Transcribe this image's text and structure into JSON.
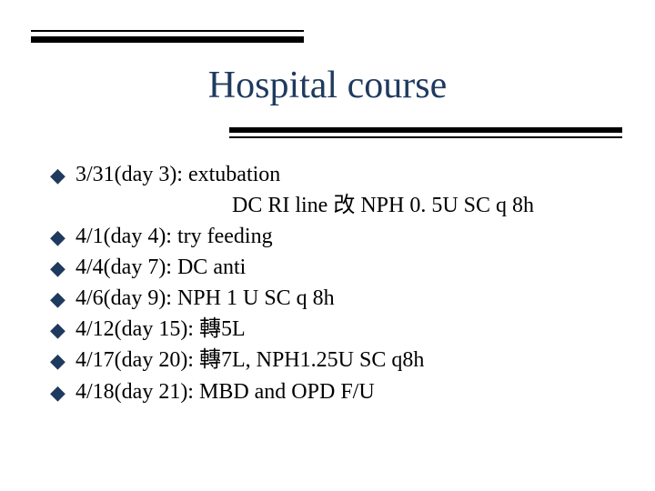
{
  "slide": {
    "title": "Hospital course",
    "title_color": "#1f3a5f",
    "bullet_color": "#1f3a5f",
    "text_color": "#000000",
    "line_color": "#000000",
    "background_color": "#ffffff",
    "title_fontsize": 42,
    "body_fontsize": 24,
    "items": [
      {
        "text": "3/31(day 3): extubation"
      },
      {
        "sub": true,
        "text": "DC RI line 改 NPH 0. 5U SC q 8h"
      },
      {
        "text": "4/1(day 4): try feeding"
      },
      {
        "text": "4/4(day 7): DC anti"
      },
      {
        "text": "4/6(day 9): NPH 1 U SC q 8h"
      },
      {
        "text": "4/12(day 15): 轉5L"
      },
      {
        "text": "4/17(day 20): 轉7L, NPH1.25U SC q8h"
      },
      {
        "text": "4/18(day 21): MBD and OPD F/U"
      }
    ]
  }
}
